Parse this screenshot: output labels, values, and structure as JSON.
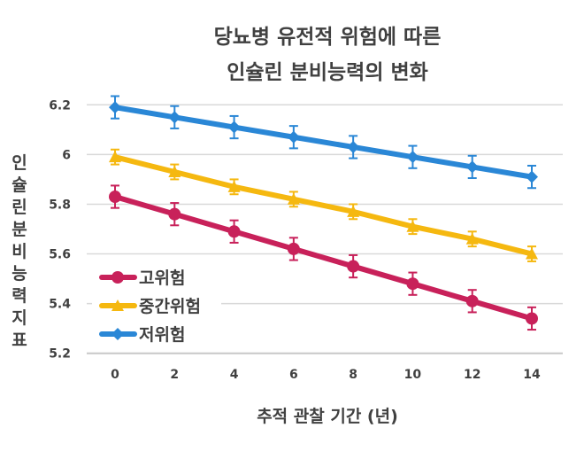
{
  "chart_data": {
    "type": "line",
    "title": [
      "당뇨병 유전적 위험에 따른",
      "인슐린 분비능력의 변화"
    ],
    "xlabel": "추적 관찰 기간 (년)",
    "ylabel": "인슐린 분비능력 지표",
    "x": [
      0,
      2,
      4,
      6,
      8,
      10,
      12,
      14
    ],
    "xlim": [
      0,
      14
    ],
    "ylim": [
      5.2,
      6.2
    ],
    "yticks": [
      5.2,
      5.4,
      5.6,
      5.8,
      6,
      6.2
    ],
    "grid": true,
    "legend_position": "bottom-left",
    "series": [
      {
        "name": "고위험",
        "color": "#c8215a",
        "marker": "circle",
        "values": [
          5.83,
          5.76,
          5.69,
          5.62,
          5.55,
          5.48,
          5.41,
          5.34
        ],
        "error": 0.045
      },
      {
        "name": "중간위험",
        "color": "#f5b810",
        "marker": "triangle",
        "values": [
          5.99,
          5.93,
          5.87,
          5.82,
          5.77,
          5.71,
          5.66,
          5.6
        ],
        "error": 0.03
      },
      {
        "name": "저위험",
        "color": "#2a87d6",
        "marker": "diamond",
        "values": [
          6.19,
          6.15,
          6.11,
          6.07,
          6.03,
          5.99,
          5.95,
          5.91
        ],
        "error": 0.045
      }
    ]
  }
}
